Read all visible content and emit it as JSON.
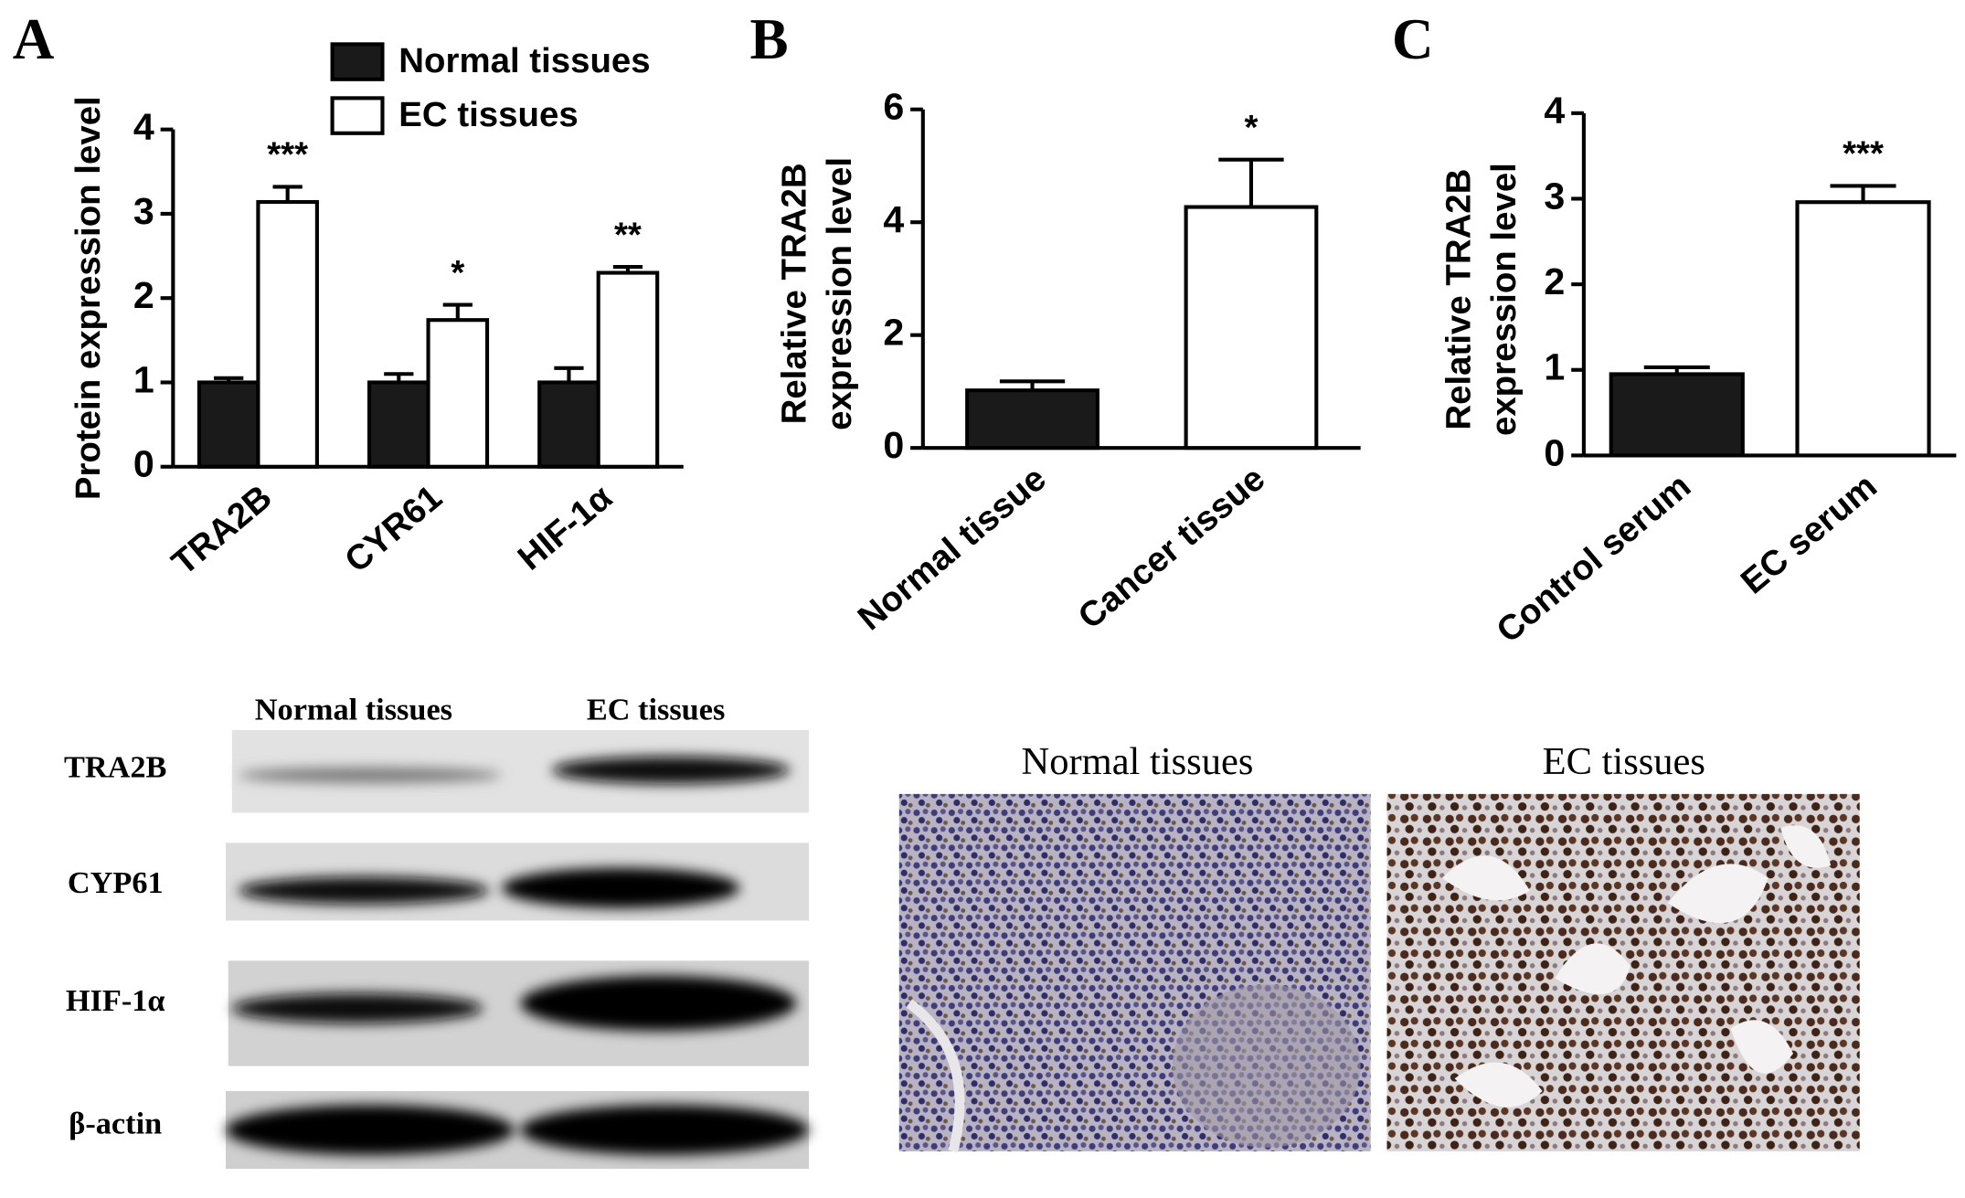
{
  "chart_data": [
    {
      "type": "bar",
      "panel": "A",
      "y_label": [
        "Protein expression level"
      ],
      "categories": [
        "TRA2B",
        "CYR61",
        "HIF-1α"
      ],
      "series": [
        {
          "name": "Normal tissues",
          "color": "#1a1a1a",
          "values": [
            1.0,
            1.0,
            1.0
          ],
          "errors": [
            0.05,
            0.1,
            0.17
          ]
        },
        {
          "name": "EC tissues",
          "color": "#ffffff",
          "values": [
            3.14,
            1.74,
            2.3
          ],
          "errors": [
            0.18,
            0.18,
            0.07
          ],
          "annotations": [
            "***",
            "*",
            "**"
          ]
        }
      ],
      "ylim": [
        0,
        4
      ],
      "yticks": [
        0,
        1,
        2,
        3,
        4
      ],
      "legend": "top"
    },
    {
      "type": "bar",
      "panel": "B",
      "y_label": [
        "Relative TRA2B",
        "expression level"
      ],
      "categories": [
        "Normal tissue",
        "Cancer tissue"
      ],
      "values": [
        1.02,
        4.27
      ],
      "errors": [
        0.16,
        0.84
      ],
      "colors": [
        "#1a1a1a",
        "#ffffff"
      ],
      "annotations": [
        null,
        "*"
      ],
      "ylim": [
        0,
        6
      ],
      "yticks": [
        0,
        2,
        4,
        6
      ]
    },
    {
      "type": "bar",
      "panel": "C",
      "y_label": [
        "Relative TRA2B",
        "expression level"
      ],
      "categories": [
        "Control serum",
        "EC serum"
      ],
      "values": [
        0.95,
        2.96
      ],
      "errors": [
        0.08,
        0.19
      ],
      "colors": [
        "#1a1a1a",
        "#ffffff"
      ],
      "annotations": [
        null,
        "***"
      ],
      "ylim": [
        0,
        4
      ],
      "yticks": [
        0,
        1,
        2,
        3,
        4
      ]
    }
  ],
  "western_blot": {
    "columns": [
      "Normal tissues",
      "EC tissues"
    ],
    "rows": [
      "TRA2B",
      "CYP61",
      "HIF-1α",
      "β-actin"
    ]
  },
  "histology": {
    "labels": [
      "Normal tissues",
      "EC tissues"
    ]
  }
}
